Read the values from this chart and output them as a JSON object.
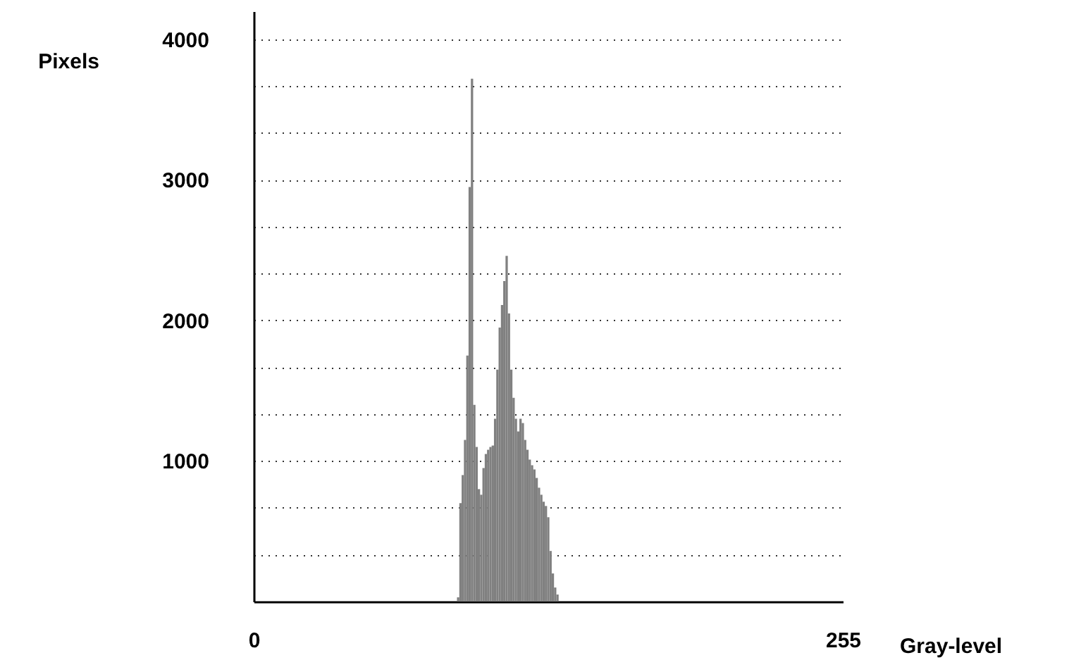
{
  "chart_data": {
    "type": "histogram",
    "xlabel": "Gray-level",
    "ylabel": "Pixels",
    "color": "#808080",
    "bins": [
      87,
      88,
      89,
      90,
      91,
      92,
      93,
      94,
      95,
      96,
      97,
      98,
      99,
      100,
      101,
      102,
      103,
      104,
      105,
      106,
      107,
      108,
      109,
      110,
      111,
      112,
      113,
      114,
      115,
      116,
      117,
      118,
      119,
      120,
      121,
      122,
      123,
      124,
      125,
      126,
      127,
      128,
      129,
      130,
      131,
      132
    ],
    "values": [
      null,
      30,
      700,
      900,
      1150,
      1750,
      2950,
      3720,
      1400,
      1100,
      800,
      760,
      950,
      1050,
      1080,
      1100,
      1110,
      1300,
      1650,
      1950,
      2110,
      2280,
      2460,
      2050,
      1650,
      1450,
      1300,
      1210,
      1300,
      1270,
      1150,
      1080,
      1010,
      970,
      940,
      880,
      810,
      760,
      710,
      680,
      600,
      360,
      200,
      100,
      50
    ],
    "xlim": [
      0,
      255
    ],
    "xticks": [
      0,
      255
    ],
    "ylim": [
      0,
      4200
    ],
    "yticks": [
      {
        "value": 333.3,
        "label": null
      },
      {
        "value": 666.7,
        "label": null
      },
      1000,
      {
        "value": 1333.3,
        "label": null
      },
      {
        "value": 1666.7,
        "label": null
      },
      2000,
      {
        "value": 2333.3,
        "label": null
      },
      {
        "value": 2666.7,
        "label": null
      },
      3000,
      {
        "value": 3333.3,
        "label": null
      },
      {
        "value": 3666.7,
        "label": null
      },
      4000
    ],
    "grid": "y"
  }
}
